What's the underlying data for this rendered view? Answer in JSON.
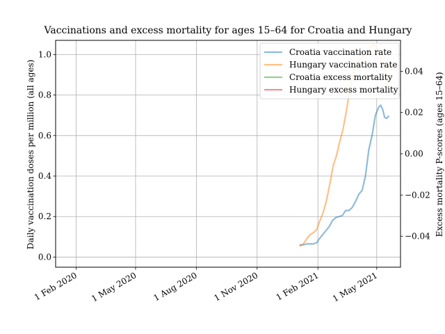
{
  "chart_data": {
    "type": "line",
    "title": "Vaccinations and excess mortality for ages 15–64 for Croatia and Hungary",
    "xlabel": "",
    "ylabel_left": "Daily vaccination doses per million (all ages)",
    "ylabel_right": "Excess mortality P-scores (ages 15–64)",
    "xlim": [
      "2020-01-01",
      "2021-06-06"
    ],
    "ylim_left": [
      -0.05,
      1.07
    ],
    "ylim_right": [
      -0.055,
      0.055
    ],
    "x_ticks": [
      {
        "date": "2020-02-01",
        "label": "1 Feb 2020"
      },
      {
        "date": "2020-05-01",
        "label": "1 May 2020"
      },
      {
        "date": "2020-08-01",
        "label": "1 Aug 2020"
      },
      {
        "date": "2020-11-01",
        "label": "1 Nov 2020"
      },
      {
        "date": "2021-02-01",
        "label": "1 Feb 2021"
      },
      {
        "date": "2021-05-01",
        "label": "1 May 2021"
      }
    ],
    "y_ticks_left": [
      {
        "value": 0.0,
        "label": "0.0"
      },
      {
        "value": 0.2,
        "label": "0.2"
      },
      {
        "value": 0.4,
        "label": "0.4"
      },
      {
        "value": 0.6,
        "label": "0.6"
      },
      {
        "value": 0.8,
        "label": "0.8"
      },
      {
        "value": 1.0,
        "label": "1.0"
      }
    ],
    "y_ticks_right": [
      {
        "value": -0.04,
        "label": "−0.04"
      },
      {
        "value": -0.02,
        "label": "−0.02"
      },
      {
        "value": 0.0,
        "label": "0.00"
      },
      {
        "value": 0.02,
        "label": "0.02"
      },
      {
        "value": 0.04,
        "label": "0.04"
      }
    ],
    "grid": true,
    "legend_position": "top-right",
    "series": [
      {
        "name": "Croatia vaccination rate",
        "axis": "left",
        "color": "#1f77b4",
        "points": [
          [
            "2021-01-05",
            0.06
          ],
          [
            "2021-01-10",
            0.06
          ],
          [
            "2021-01-15",
            0.065
          ],
          [
            "2021-01-20",
            0.065
          ],
          [
            "2021-01-25",
            0.065
          ],
          [
            "2021-01-30",
            0.07
          ],
          [
            "2021-02-03",
            0.09
          ],
          [
            "2021-02-08",
            0.11
          ],
          [
            "2021-02-13",
            0.13
          ],
          [
            "2021-02-18",
            0.15
          ],
          [
            "2021-02-23",
            0.18
          ],
          [
            "2021-02-28",
            0.195
          ],
          [
            "2021-03-05",
            0.2
          ],
          [
            "2021-03-10",
            0.205
          ],
          [
            "2021-03-15",
            0.23
          ],
          [
            "2021-03-20",
            0.23
          ],
          [
            "2021-03-25",
            0.245
          ],
          [
            "2021-03-30",
            0.275
          ],
          [
            "2021-04-04",
            0.31
          ],
          [
            "2021-04-09",
            0.33
          ],
          [
            "2021-04-14",
            0.4
          ],
          [
            "2021-04-19",
            0.53
          ],
          [
            "2021-04-24",
            0.6
          ],
          [
            "2021-04-29",
            0.7
          ],
          [
            "2021-05-04",
            0.74
          ],
          [
            "2021-05-07",
            0.75
          ],
          [
            "2021-05-10",
            0.73
          ],
          [
            "2021-05-13",
            0.69
          ],
          [
            "2021-05-16",
            0.685
          ],
          [
            "2021-05-19",
            0.695
          ]
        ]
      },
      {
        "name": "Hungary vaccination rate",
        "axis": "left",
        "color": "#ff7f0e",
        "points": [
          [
            "2021-01-05",
            0.055
          ],
          [
            "2021-01-10",
            0.065
          ],
          [
            "2021-01-15",
            0.09
          ],
          [
            "2021-01-20",
            0.11
          ],
          [
            "2021-01-25",
            0.12
          ],
          [
            "2021-01-30",
            0.135
          ],
          [
            "2021-02-04",
            0.18
          ],
          [
            "2021-02-09",
            0.22
          ],
          [
            "2021-02-14",
            0.28
          ],
          [
            "2021-02-19",
            0.36
          ],
          [
            "2021-02-24",
            0.45
          ],
          [
            "2021-03-01",
            0.5
          ],
          [
            "2021-03-06",
            0.57
          ],
          [
            "2021-03-11",
            0.63
          ],
          [
            "2021-03-16",
            0.72
          ],
          [
            "2021-03-21",
            0.82
          ],
          [
            "2021-03-26",
            0.9
          ],
          [
            "2021-03-31",
            0.95
          ],
          [
            "2021-04-05",
            0.97
          ],
          [
            "2021-04-10",
            0.99
          ],
          [
            "2021-04-15",
            1.0
          ],
          [
            "2021-04-20",
            1.03
          ],
          [
            "2021-04-25",
            1.05
          ],
          [
            "2021-04-30",
            1.04
          ],
          [
            "2021-05-05",
            1.0
          ],
          [
            "2021-05-10",
            0.96
          ],
          [
            "2021-05-15",
            0.9
          ],
          [
            "2021-05-20",
            0.82
          ]
        ]
      },
      {
        "name": "Croatia excess mortality",
        "axis": "right",
        "color": "#2ca02c",
        "points": []
      },
      {
        "name": "Hungary excess mortality",
        "axis": "right",
        "color": "#d62728",
        "points": []
      }
    ]
  }
}
